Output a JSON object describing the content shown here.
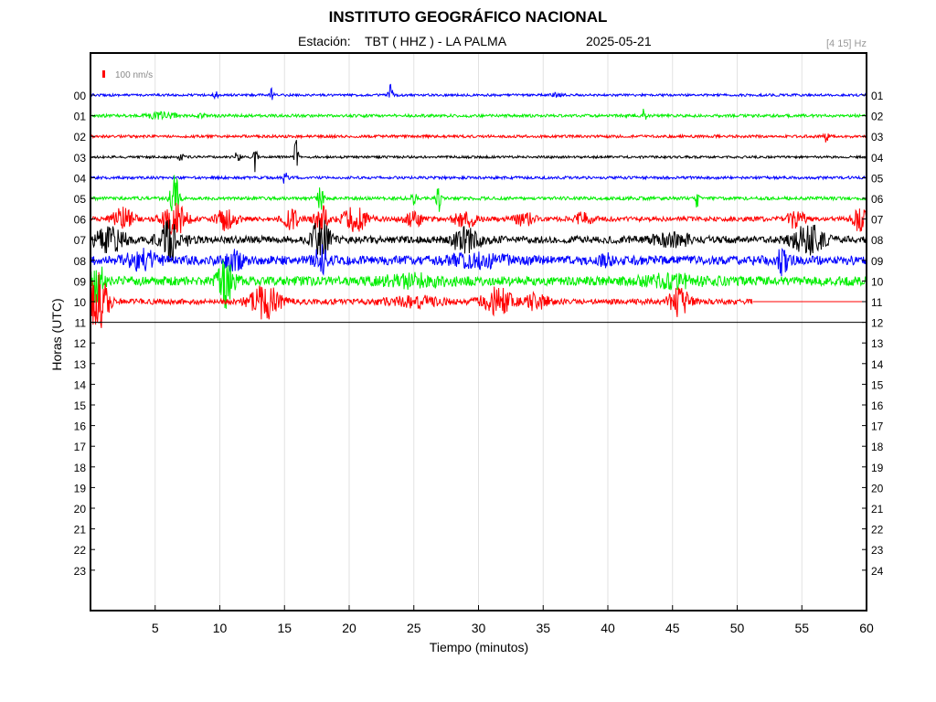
{
  "header": {
    "title": "INSTITUTO GEOGRÁFICO NACIONAL",
    "station_prefix": "Estación:",
    "station": "TBT ( HHZ ) - LA PALMA",
    "date": "2025-05-21",
    "filter": "[4 15] Hz"
  },
  "chart_data": {
    "type": "line",
    "title": "INSTITUTO GEOGRÁFICO NACIONAL",
    "xlabel": "Tiempo (minutos)",
    "ylabel": "Horas (UTC)",
    "xlim": [
      0,
      60
    ],
    "x_ticks": [
      "5",
      "10",
      "15",
      "20",
      "25",
      "30",
      "35",
      "40",
      "45",
      "50",
      "55",
      "60"
    ],
    "left_ticks": [
      "00",
      "01",
      "02",
      "03",
      "04",
      "05",
      "06",
      "07",
      "08",
      "09",
      "10",
      "11",
      "12",
      "13",
      "14",
      "15",
      "16",
      "17",
      "18",
      "19",
      "20",
      "21",
      "22",
      "23"
    ],
    "right_ticks": [
      "01",
      "02",
      "03",
      "04",
      "05",
      "06",
      "07",
      "08",
      "09",
      "10",
      "11",
      "12",
      "13",
      "14",
      "15",
      "16",
      "17",
      "18",
      "19",
      "20",
      "21",
      "22",
      "23",
      "24"
    ],
    "scale_label": "100 nm/s",
    "grid": true,
    "trace_colors": [
      "#0000ff",
      "#00ee00",
      "#ff0000",
      "#000000"
    ],
    "traces": [
      {
        "hour": "00",
        "color": "#0000ff",
        "end_minute": 60,
        "noise": 1.3,
        "events": [
          [
            9.7,
            0.2,
            5
          ],
          [
            14,
            0.2,
            7
          ],
          [
            23.2,
            0.2,
            12
          ],
          [
            36,
            0.5,
            2
          ]
        ]
      },
      {
        "hour": "01",
        "color": "#00ee00",
        "end_minute": 60,
        "noise": 1.6,
        "events": [
          [
            5.5,
            1.5,
            3
          ],
          [
            8.5,
            0.5,
            2
          ],
          [
            42.8,
            0.2,
            11
          ]
        ]
      },
      {
        "hour": "02",
        "color": "#ff0000",
        "end_minute": 60,
        "noise": 1.5,
        "events": [
          [
            56.9,
            0.2,
            9
          ]
        ]
      },
      {
        "hour": "03",
        "color": "#000000",
        "end_minute": 60,
        "noise": 1.3,
        "events": [
          [
            11.4,
            0.2,
            12
          ],
          [
            12.7,
            0.2,
            18
          ],
          [
            15.9,
            0.2,
            22
          ],
          [
            7,
            0.3,
            3
          ]
        ]
      },
      {
        "hour": "04",
        "color": "#0000ff",
        "end_minute": 60,
        "noise": 1.5,
        "events": [
          [
            15,
            0.3,
            6
          ]
        ]
      },
      {
        "hour": "05",
        "color": "#00ee00",
        "end_minute": 60,
        "noise": 1.8,
        "events": [
          [
            6.5,
            0.4,
            30
          ],
          [
            17.8,
            0.3,
            16
          ],
          [
            25,
            0.3,
            6
          ],
          [
            26.9,
            0.2,
            18
          ],
          [
            46.9,
            0.2,
            14
          ]
        ]
      },
      {
        "hour": "06",
        "color": "#ff0000",
        "end_minute": 60,
        "noise": 2.5,
        "events": [
          [
            2.5,
            1,
            12
          ],
          [
            6.5,
            1.2,
            18
          ],
          [
            10.5,
            1,
            12
          ],
          [
            15.5,
            0.8,
            10
          ],
          [
            17.8,
            0.6,
            18
          ],
          [
            20.5,
            1.2,
            13
          ],
          [
            25,
            1,
            7
          ],
          [
            29,
            1.2,
            8
          ],
          [
            33.5,
            1,
            7
          ],
          [
            38,
            1,
            6
          ],
          [
            54.5,
            0.8,
            12
          ],
          [
            59.5,
            0.7,
            14
          ]
        ]
      },
      {
        "hour": "07",
        "color": "#000000",
        "end_minute": 60,
        "noise": 4,
        "events": [
          [
            1.5,
            1.5,
            12
          ],
          [
            6.3,
            1.2,
            22
          ],
          [
            17.8,
            0.8,
            25
          ],
          [
            29,
            1.5,
            12
          ],
          [
            45,
            2,
            6
          ],
          [
            55.5,
            1.5,
            15
          ]
        ]
      },
      {
        "hour": "08",
        "color": "#0000ff",
        "end_minute": 60,
        "noise": 5,
        "events": [
          [
            4,
            1.5,
            9
          ],
          [
            11,
            1,
            10
          ],
          [
            17.8,
            0.6,
            14
          ],
          [
            39.8,
            0.4,
            14
          ],
          [
            53.5,
            0.5,
            14
          ],
          [
            30,
            3,
            5
          ]
        ]
      },
      {
        "hour": "09",
        "color": "#00ee00",
        "end_minute": 60,
        "noise": 5,
        "events": [
          [
            0.5,
            0.6,
            22
          ],
          [
            10.5,
            0.8,
            26
          ],
          [
            25,
            3,
            5
          ],
          [
            45,
            3,
            5
          ]
        ]
      },
      {
        "hour": "10",
        "color": "#ff0000",
        "end_minute": 51.2,
        "noise": 3,
        "events": [
          [
            0.6,
            1,
            30
          ],
          [
            13.5,
            1.5,
            18
          ],
          [
            31.5,
            1.5,
            15
          ],
          [
            34.5,
            1,
            10
          ],
          [
            45.5,
            1,
            15
          ],
          [
            25,
            3,
            5
          ]
        ]
      },
      {
        "hour": "11",
        "color": "#000000",
        "end_minute": 0.8,
        "noise": 0.3,
        "events": []
      }
    ]
  }
}
